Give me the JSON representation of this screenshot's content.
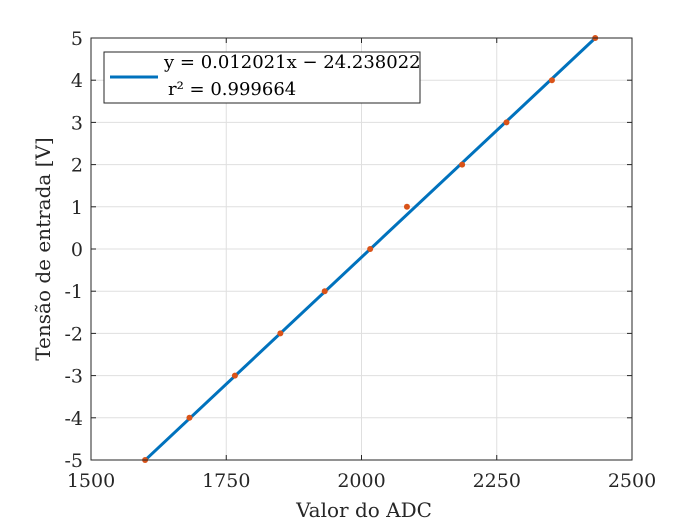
{
  "chart_data": {
    "type": "scatter",
    "xlabel": "Valor do ADC",
    "ylabel": "Tensão de entrada [V]",
    "xlim": [
      1500,
      2500
    ],
    "ylim": [
      -5,
      5
    ],
    "xticks": [
      1500,
      1750,
      2000,
      2250,
      2500
    ],
    "yticks": [
      -5,
      -4,
      -3,
      -2,
      -1,
      0,
      1,
      2,
      3,
      4,
      5
    ],
    "grid": true,
    "legend_position": "top-left",
    "legend": {
      "equation": "y = 0.012021x − 24.238022",
      "r2": "r² = 0.999664"
    },
    "fit": {
      "slope": 0.012021,
      "intercept": -24.238022,
      "x_range": [
        1600,
        2432
      ],
      "color": "#0072BD"
    },
    "points": {
      "color": "#D95319",
      "x": [
        1600,
        1682,
        1766,
        1850,
        1932,
        2016,
        2084,
        2186,
        2268,
        2352,
        2432
      ],
      "y": [
        -5,
        -4,
        -3,
        -2,
        -1,
        0,
        1,
        2,
        3,
        4,
        5
      ]
    }
  }
}
